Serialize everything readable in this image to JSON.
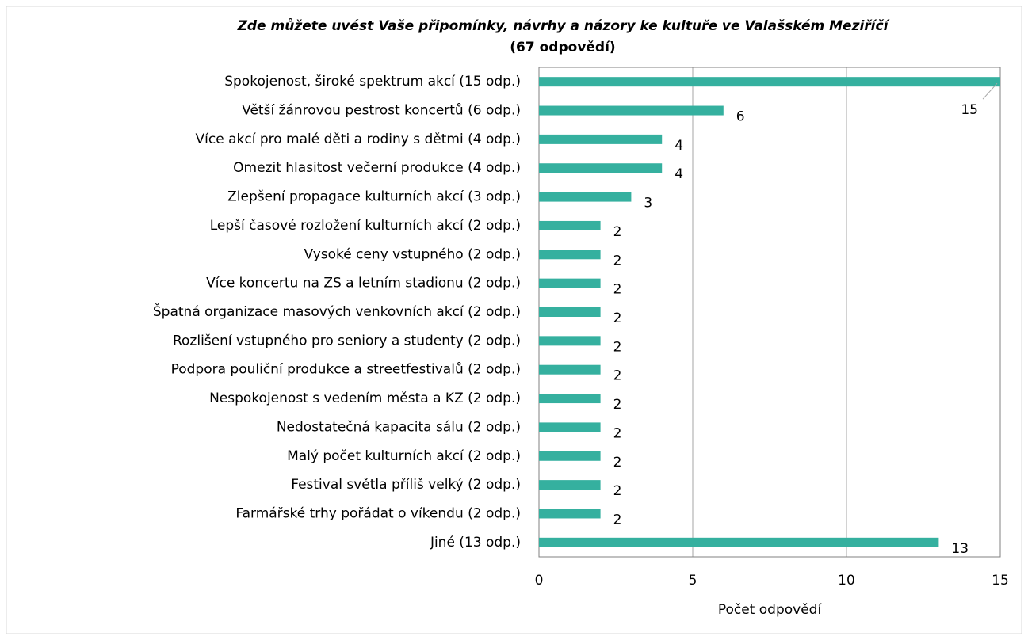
{
  "chart_data": {
    "type": "bar",
    "orientation": "horizontal",
    "title": "Zde můžete uvést Vaše připomínky, návrhy a názory ke kultuře ve Valašském Meziříčí",
    "subtitle": "(67 odpovědí)",
    "x_label": "Počet odpovědí",
    "categories": [
      "Spokojenost, široké spektrum akcí (15 odp.)",
      "Větší žánrovou pestrost koncertů (6 odp.)",
      "Více akcí pro malé děti a rodiny s dětmi (4 odp.)",
      "Omezit hlasitost večerní produkce (4 odp.)",
      "Zlepšení propagace kulturních akcí (3 odp.)",
      "Lepší časové rozložení kulturních akcí (2 odp.)",
      "Vysoké ceny vstupného (2 odp.)",
      "Více koncertu na ZS a letním stadionu (2 odp.)",
      "Špatná organizace masových venkovních akcí (2 odp.)",
      "Rozlišení vstupného pro seniory a studenty (2 odp.)",
      "Podpora pouliční produkce a streetfestivalů (2 odp.)",
      "Nespokojenost s vedením města a KZ (2 odp.)",
      "Nedostatečná kapacita sálu (2 odp.)",
      "Malý počet kulturních akcí (2 odp.)",
      "Festival světla příliš velký (2 odp.)",
      "Farmářské trhy pořádat o víkendu (2 odp.)",
      "Jiné (13 odp.)"
    ],
    "values": [
      15,
      6,
      4,
      4,
      3,
      2,
      2,
      2,
      2,
      2,
      2,
      2,
      2,
      2,
      2,
      2,
      13
    ],
    "color": "#35b09f",
    "xlim": [
      0,
      15
    ],
    "xticks": [
      0,
      5,
      10,
      15
    ],
    "grid": true
  }
}
